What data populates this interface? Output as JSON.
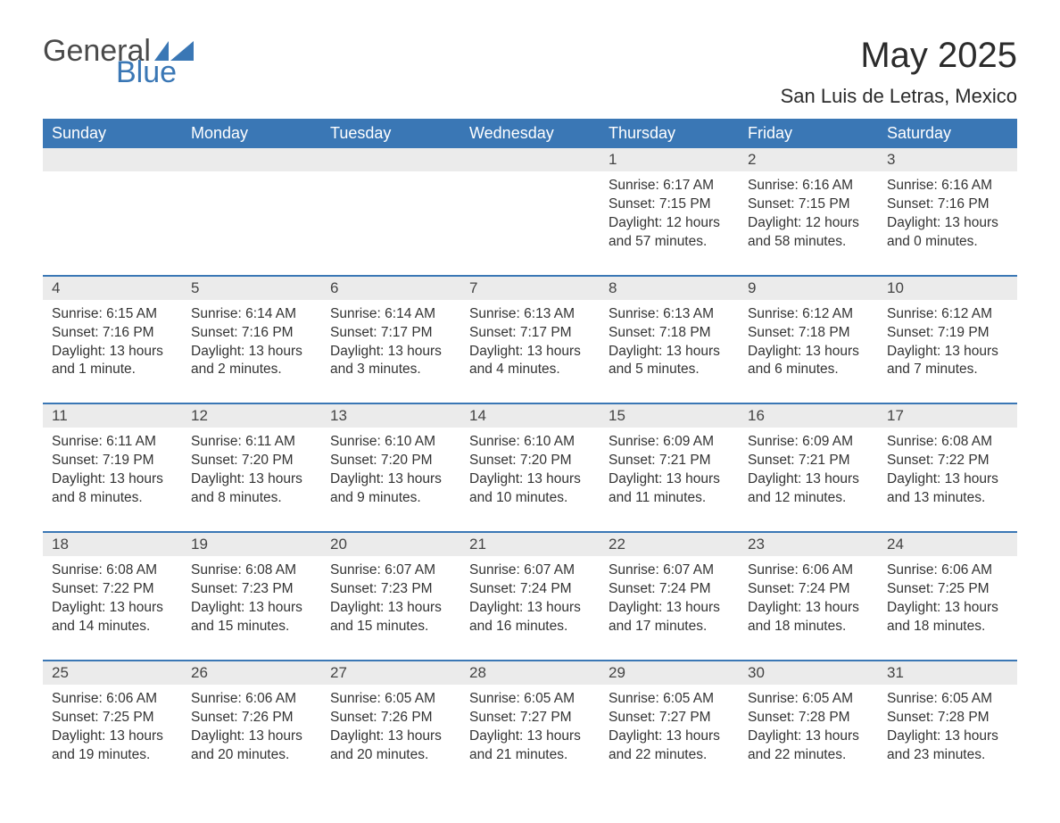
{
  "logo": {
    "text1": "General",
    "text2": "Blue",
    "shape_color": "#3a77b5"
  },
  "title": "May 2025",
  "location": "San Luis de Letras, Mexico",
  "colors": {
    "header_bg": "#3a77b5",
    "header_text": "#ffffff",
    "daynum_bg": "#ebebeb",
    "text": "#333333",
    "rule": "#3a77b5"
  },
  "day_names": [
    "Sunday",
    "Monday",
    "Tuesday",
    "Wednesday",
    "Thursday",
    "Friday",
    "Saturday"
  ],
  "weeks": [
    [
      null,
      null,
      null,
      null,
      {
        "n": "1",
        "sunrise": "6:17 AM",
        "sunset": "7:15 PM",
        "daylight": "12 hours and 57 minutes."
      },
      {
        "n": "2",
        "sunrise": "6:16 AM",
        "sunset": "7:15 PM",
        "daylight": "12 hours and 58 minutes."
      },
      {
        "n": "3",
        "sunrise": "6:16 AM",
        "sunset": "7:16 PM",
        "daylight": "13 hours and 0 minutes."
      }
    ],
    [
      {
        "n": "4",
        "sunrise": "6:15 AM",
        "sunset": "7:16 PM",
        "daylight": "13 hours and 1 minute."
      },
      {
        "n": "5",
        "sunrise": "6:14 AM",
        "sunset": "7:16 PM",
        "daylight": "13 hours and 2 minutes."
      },
      {
        "n": "6",
        "sunrise": "6:14 AM",
        "sunset": "7:17 PM",
        "daylight": "13 hours and 3 minutes."
      },
      {
        "n": "7",
        "sunrise": "6:13 AM",
        "sunset": "7:17 PM",
        "daylight": "13 hours and 4 minutes."
      },
      {
        "n": "8",
        "sunrise": "6:13 AM",
        "sunset": "7:18 PM",
        "daylight": "13 hours and 5 minutes."
      },
      {
        "n": "9",
        "sunrise": "6:12 AM",
        "sunset": "7:18 PM",
        "daylight": "13 hours and 6 minutes."
      },
      {
        "n": "10",
        "sunrise": "6:12 AM",
        "sunset": "7:19 PM",
        "daylight": "13 hours and 7 minutes."
      }
    ],
    [
      {
        "n": "11",
        "sunrise": "6:11 AM",
        "sunset": "7:19 PM",
        "daylight": "13 hours and 8 minutes."
      },
      {
        "n": "12",
        "sunrise": "6:11 AM",
        "sunset": "7:20 PM",
        "daylight": "13 hours and 8 minutes."
      },
      {
        "n": "13",
        "sunrise": "6:10 AM",
        "sunset": "7:20 PM",
        "daylight": "13 hours and 9 minutes."
      },
      {
        "n": "14",
        "sunrise": "6:10 AM",
        "sunset": "7:20 PM",
        "daylight": "13 hours and 10 minutes."
      },
      {
        "n": "15",
        "sunrise": "6:09 AM",
        "sunset": "7:21 PM",
        "daylight": "13 hours and 11 minutes."
      },
      {
        "n": "16",
        "sunrise": "6:09 AM",
        "sunset": "7:21 PM",
        "daylight": "13 hours and 12 minutes."
      },
      {
        "n": "17",
        "sunrise": "6:08 AM",
        "sunset": "7:22 PM",
        "daylight": "13 hours and 13 minutes."
      }
    ],
    [
      {
        "n": "18",
        "sunrise": "6:08 AM",
        "sunset": "7:22 PM",
        "daylight": "13 hours and 14 minutes."
      },
      {
        "n": "19",
        "sunrise": "6:08 AM",
        "sunset": "7:23 PM",
        "daylight": "13 hours and 15 minutes."
      },
      {
        "n": "20",
        "sunrise": "6:07 AM",
        "sunset": "7:23 PM",
        "daylight": "13 hours and 15 minutes."
      },
      {
        "n": "21",
        "sunrise": "6:07 AM",
        "sunset": "7:24 PM",
        "daylight": "13 hours and 16 minutes."
      },
      {
        "n": "22",
        "sunrise": "6:07 AM",
        "sunset": "7:24 PM",
        "daylight": "13 hours and 17 minutes."
      },
      {
        "n": "23",
        "sunrise": "6:06 AM",
        "sunset": "7:24 PM",
        "daylight": "13 hours and 18 minutes."
      },
      {
        "n": "24",
        "sunrise": "6:06 AM",
        "sunset": "7:25 PM",
        "daylight": "13 hours and 18 minutes."
      }
    ],
    [
      {
        "n": "25",
        "sunrise": "6:06 AM",
        "sunset": "7:25 PM",
        "daylight": "13 hours and 19 minutes."
      },
      {
        "n": "26",
        "sunrise": "6:06 AM",
        "sunset": "7:26 PM",
        "daylight": "13 hours and 20 minutes."
      },
      {
        "n": "27",
        "sunrise": "6:05 AM",
        "sunset": "7:26 PM",
        "daylight": "13 hours and 20 minutes."
      },
      {
        "n": "28",
        "sunrise": "6:05 AM",
        "sunset": "7:27 PM",
        "daylight": "13 hours and 21 minutes."
      },
      {
        "n": "29",
        "sunrise": "6:05 AM",
        "sunset": "7:27 PM",
        "daylight": "13 hours and 22 minutes."
      },
      {
        "n": "30",
        "sunrise": "6:05 AM",
        "sunset": "7:28 PM",
        "daylight": "13 hours and 22 minutes."
      },
      {
        "n": "31",
        "sunrise": "6:05 AM",
        "sunset": "7:28 PM",
        "daylight": "13 hours and 23 minutes."
      }
    ]
  ],
  "labels": {
    "sunrise": "Sunrise: ",
    "sunset": "Sunset: ",
    "daylight": "Daylight: "
  }
}
